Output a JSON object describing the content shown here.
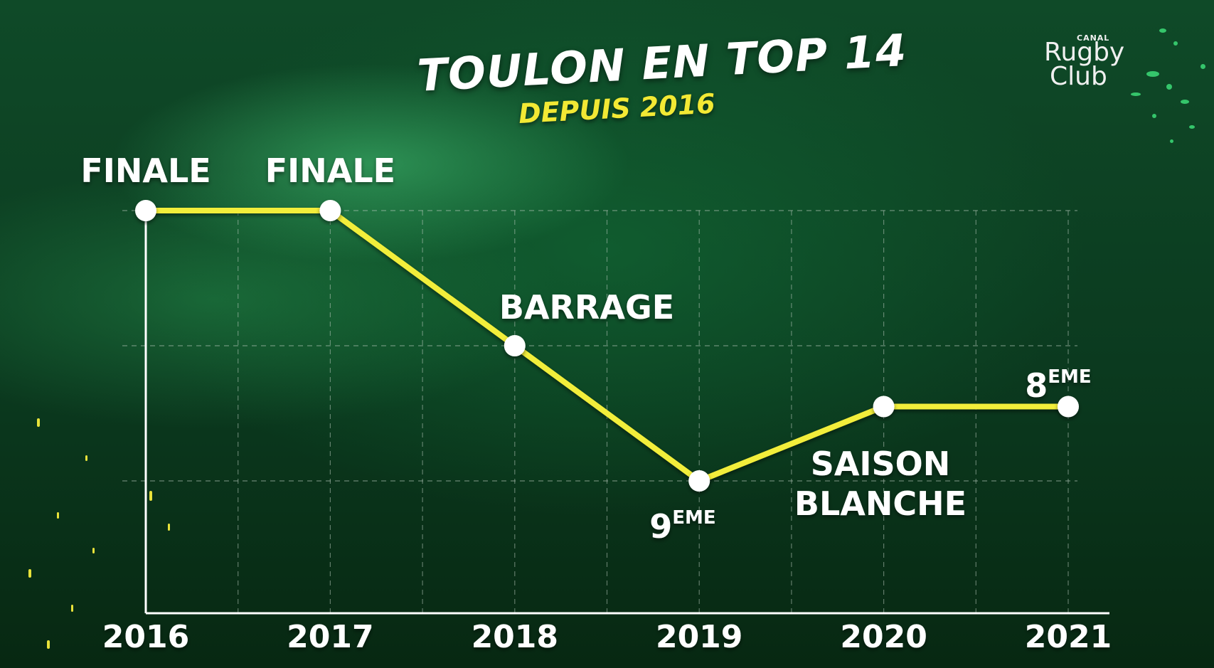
{
  "title": "TOULON EN TOP 14",
  "subtitle": "DEPUIS 2016",
  "logo": {
    "canal": "CANAL",
    "rugby": "Rugby",
    "club": "Club"
  },
  "colors": {
    "line": "#f2ee3a",
    "point": "#ffffff",
    "axis": "#ffffff",
    "grid": "#b9c9bd"
  },
  "chart_data": {
    "type": "line",
    "x": [
      "2016",
      "2017",
      "2018",
      "2019",
      "2020",
      "2021"
    ],
    "y": [
      1,
      1,
      2,
      3,
      2.45,
      2.45
    ],
    "labels": [
      {
        "main": "FINALE",
        "sup": ""
      },
      {
        "main": "FINALE",
        "sup": ""
      },
      {
        "main": "BARRAGE",
        "sup": ""
      },
      {
        "main": "9",
        "sup": "EME"
      },
      {
        "main": "SAISON BLANCHE",
        "lines": [
          "SAISON",
          "BLANCHE"
        ],
        "sup": ""
      },
      {
        "main": "8",
        "sup": "EME"
      }
    ],
    "grid": true
  }
}
